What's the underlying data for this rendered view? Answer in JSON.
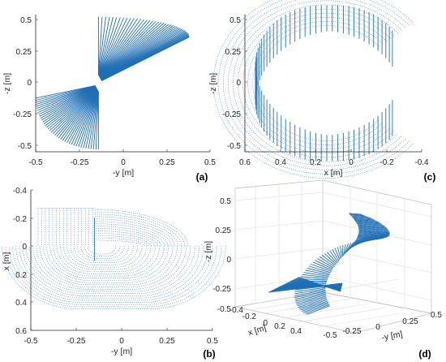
{
  "figure": {
    "background": "#ffffff",
    "series_color": "#1f6fb4"
  },
  "chart_data": [
    {
      "panel": "(a)",
      "type": "line",
      "xlabel": "-y [m]",
      "ylabel": "-z [m]",
      "xlim": [
        -0.5,
        0.5
      ],
      "ylim": [
        -0.55,
        0.55
      ],
      "xticks": [
        "-0.5",
        "-0.25",
        "0",
        "0.25",
        "0.5"
      ],
      "xtick_values": [
        -0.5,
        -0.25,
        0,
        0.25,
        0.5
      ],
      "yticks": [
        "0.5",
        "0.25",
        "0",
        "-0.25",
        "-0.5"
      ],
      "ytick_values": [
        0.5,
        0.25,
        0,
        -0.25,
        -0.5
      ],
      "grid": false,
      "description_values": {
        "upper_fan": {
          "pivot": [
            -0.14,
            0.07
          ],
          "tips_from": [
            -0.14,
            0.53
          ],
          "tips_to": [
            0.38,
            0.37
          ],
          "count": 40
        },
        "lower_fan": {
          "pivot": [
            -0.14,
            -0.07
          ],
          "tips_from": [
            -0.14,
            -0.53
          ],
          "tips_to": [
            -0.5,
            -0.12
          ],
          "count": 40
        }
      }
    },
    {
      "panel": "(c)",
      "type": "line",
      "xlabel": "x [m]",
      "ylabel": "-z [m]",
      "xlim": [
        0.6,
        -0.4
      ],
      "ylim": [
        -0.55,
        0.55
      ],
      "xticks": [
        "0.6",
        "0.4",
        "0.2",
        "0",
        "-0.2",
        "-0.4"
      ],
      "xtick_values": [
        0.6,
        0.4,
        0.2,
        0,
        -0.2,
        -0.4
      ],
      "yticks": [
        "0.5",
        "0.25",
        "0",
        "-0.25",
        "-0.5"
      ],
      "ytick_values": [
        0.5,
        0.25,
        0,
        -0.25,
        -0.5
      ],
      "grid": false
    },
    {
      "panel": "(b)",
      "type": "scatter",
      "xlabel": "-y [m]",
      "ylabel": "x [m]",
      "xlim": [
        -0.5,
        0.5
      ],
      "ylim": [
        0.6,
        -0.4
      ],
      "xticks": [
        "-0.5",
        "-0.25",
        "0",
        "0.25",
        "0.5"
      ],
      "xtick_values": [
        -0.5,
        -0.25,
        0,
        0.25,
        0.5
      ],
      "yticks": [
        "-0.4",
        "-0.2",
        "0",
        "0.2",
        "0.4",
        "0.6"
      ],
      "ytick_values": [
        -0.4,
        -0.2,
        0,
        0.2,
        0.4,
        0.6
      ],
      "grid": false
    },
    {
      "panel": "(d)",
      "type": "line",
      "projection": "3d",
      "xlabel": "x [m]",
      "ylabel": "-y [m]",
      "zlabel": "-z [m]",
      "xticks": [
        "-0.4",
        "-0.2",
        "0",
        "0.2",
        "0.4"
      ],
      "yticks": [
        "-0.5",
        "-0.25",
        "0",
        "0.25",
        "0.5"
      ],
      "zticks": [
        "0.5",
        "0.25",
        "0",
        "-0.25",
        "-0.5"
      ],
      "grid": true
    }
  ]
}
